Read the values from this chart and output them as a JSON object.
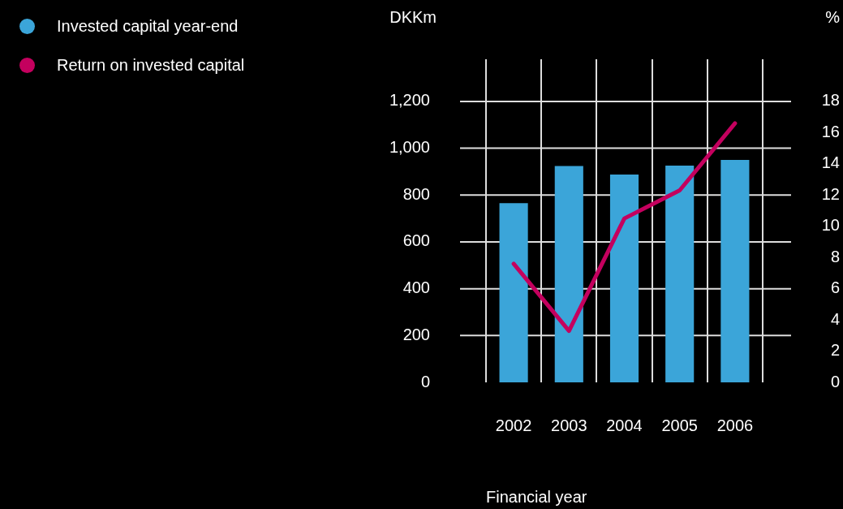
{
  "chart_data": {
    "type": "bar",
    "xlabel": "Financial year",
    "ylabel": "DKKm",
    "y2label": "%",
    "categories": [
      "2002",
      "2003",
      "2004",
      "2005",
      "2006"
    ],
    "series": [
      {
        "name": "Invested capital year-end",
        "color": "#3ba5d9",
        "values": [
          765,
          924,
          888,
          926,
          950
        ]
      },
      {
        "name": "Return on invested capital",
        "type": "line",
        "axis": "y2",
        "color": "#c4005e",
        "values": [
          7.6,
          3.3,
          10.5,
          12.3,
          16.6
        ]
      }
    ],
    "ylim": [
      0,
      1380
    ],
    "yticks": [
      0,
      200,
      400,
      600,
      800,
      {
        "value": 1000,
        "label": "1,000"
      },
      {
        "value": 1200,
        "label": "1,200"
      }
    ],
    "y2lim": [
      0,
      20.7
    ],
    "y2ticks": [
      0,
      2,
      4,
      6,
      8,
      10,
      12,
      14,
      16,
      18
    ],
    "grid": true,
    "legend": "top left",
    "marker": "none",
    "line_style": "solid"
  }
}
